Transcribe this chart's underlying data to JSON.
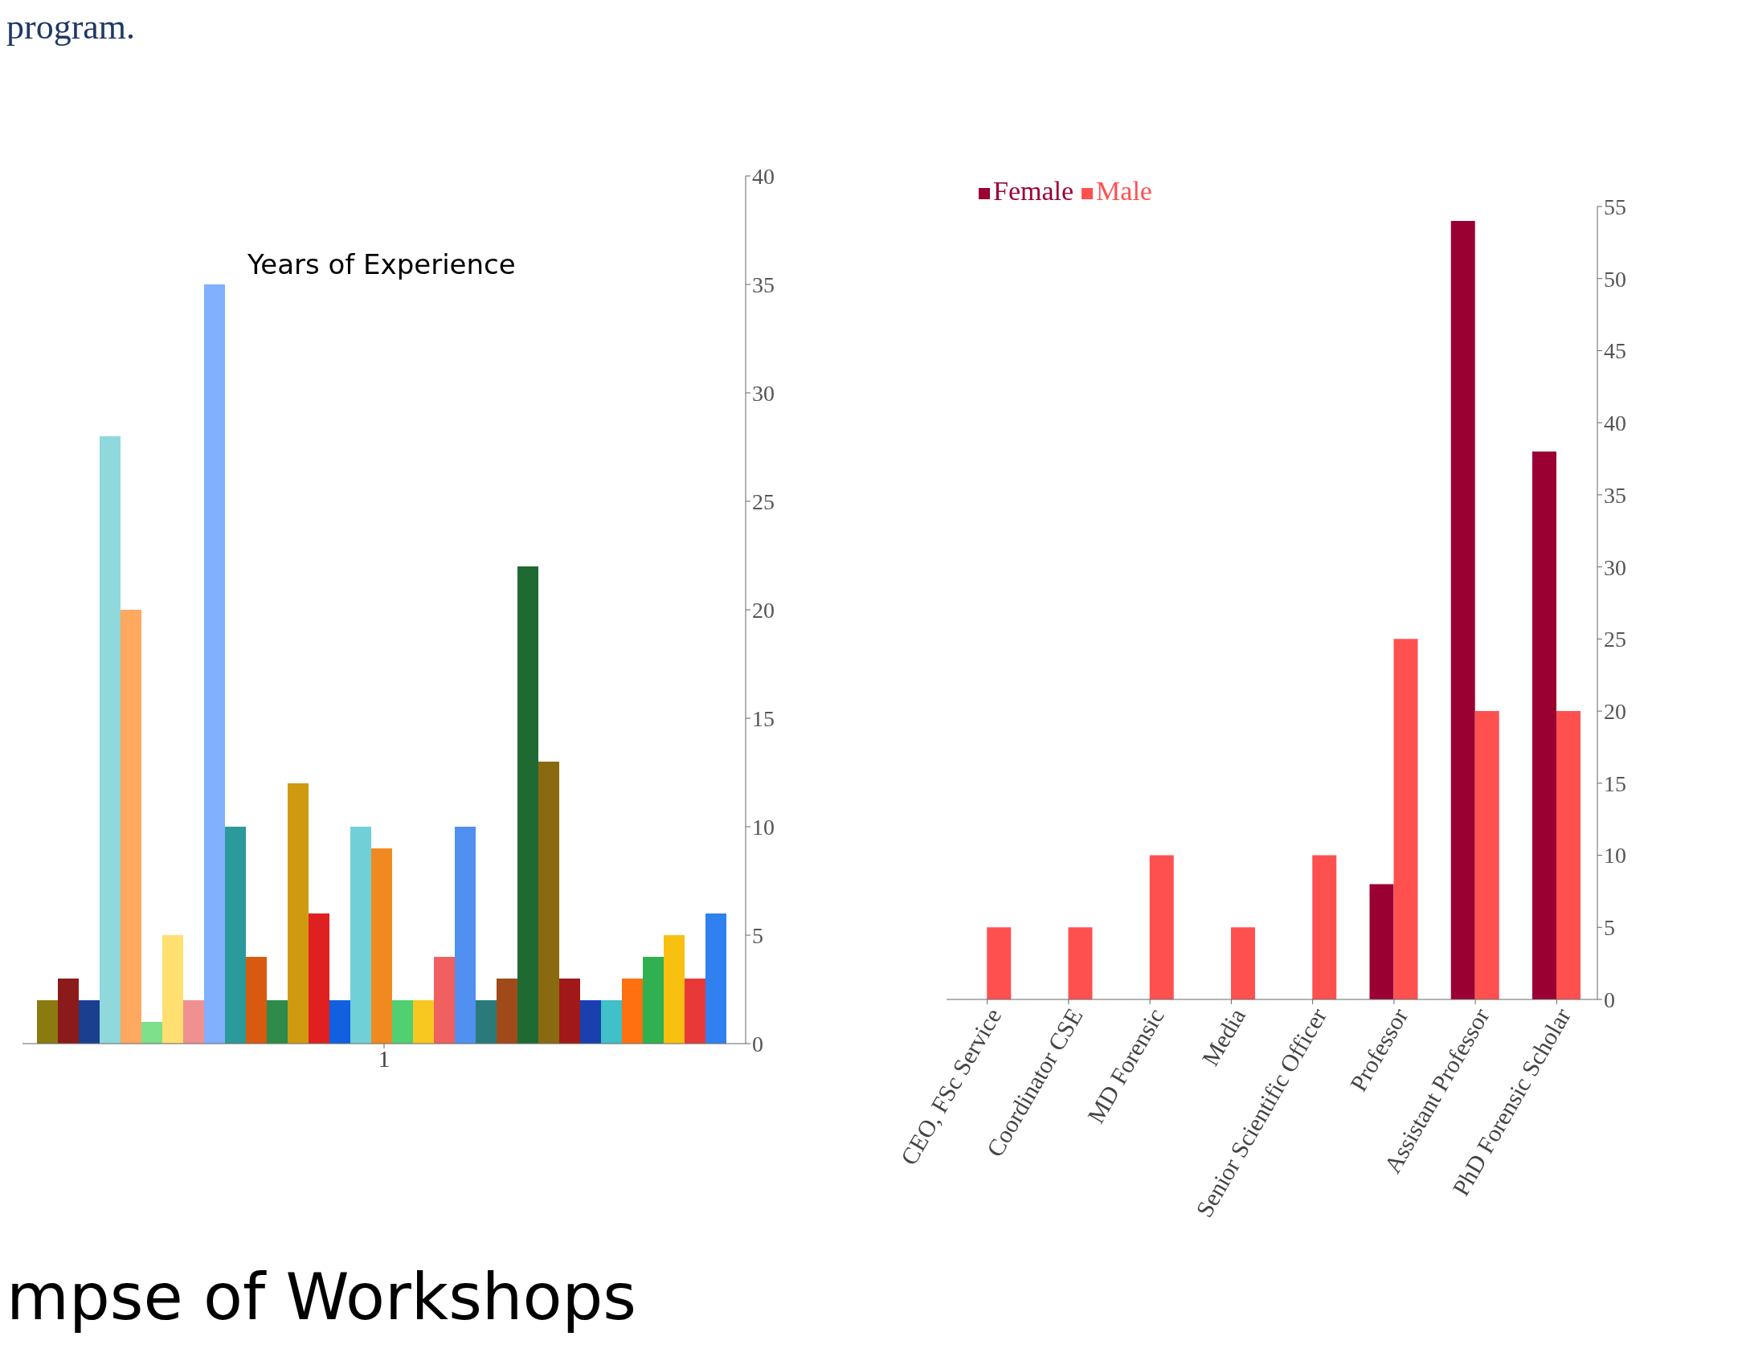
{
  "chart_data": [
    {
      "type": "bar",
      "title": "Years of Experience",
      "categories": [
        "1"
      ],
      "ylim": [
        0,
        40
      ],
      "yticks": [
        0,
        5,
        10,
        15,
        20,
        25,
        30,
        35,
        40
      ],
      "grid": false,
      "legend": false,
      "annotations": [
        "program.",
        "mpse of Workshops"
      ],
      "series": [
        {
          "color": "#8a7a10",
          "values": [
            2
          ]
        },
        {
          "color": "#8b1a1a",
          "values": [
            3
          ]
        },
        {
          "color": "#1a3f8f",
          "values": [
            2
          ]
        },
        {
          "color": "#8fd8dc",
          "values": [
            28
          ]
        },
        {
          "color": "#ffa860",
          "values": [
            20
          ]
        },
        {
          "color": "#7ee08a",
          "values": [
            1
          ]
        },
        {
          "color": "#ffe070",
          "values": [
            5
          ]
        },
        {
          "color": "#f09090",
          "values": [
            2
          ]
        },
        {
          "color": "#80b0ff",
          "values": [
            35
          ]
        },
        {
          "color": "#2a9a9a",
          "values": [
            10
          ]
        },
        {
          "color": "#d85a10",
          "values": [
            4
          ]
        },
        {
          "color": "#2e8b4a",
          "values": [
            2
          ]
        },
        {
          "color": "#d09a10",
          "values": [
            12
          ]
        },
        {
          "color": "#e02020",
          "values": [
            6
          ]
        },
        {
          "color": "#1060e0",
          "values": [
            2
          ]
        },
        {
          "color": "#70d0d8",
          "values": [
            10
          ]
        },
        {
          "color": "#f08a20",
          "values": [
            9
          ]
        },
        {
          "color": "#50d070",
          "values": [
            2
          ]
        },
        {
          "color": "#f8c820",
          "values": [
            2
          ]
        },
        {
          "color": "#f06060",
          "values": [
            4
          ]
        },
        {
          "color": "#5090f0",
          "values": [
            10
          ]
        },
        {
          "color": "#2a7a7a",
          "values": [
            2
          ]
        },
        {
          "color": "#a04a1a",
          "values": [
            3
          ]
        },
        {
          "color": "#1e6a32",
          "values": [
            22
          ]
        },
        {
          "color": "#8a6a10",
          "values": [
            13
          ]
        },
        {
          "color": "#a01818",
          "values": [
            3
          ]
        },
        {
          "color": "#1a40b0",
          "values": [
            2
          ]
        },
        {
          "color": "#40c0c8",
          "values": [
            2
          ]
        },
        {
          "color": "#ff7010",
          "values": [
            3
          ]
        },
        {
          "color": "#30b050",
          "values": [
            4
          ]
        },
        {
          "color": "#f8c010",
          "values": [
            5
          ]
        },
        {
          "color": "#e83838",
          "values": [
            3
          ]
        },
        {
          "color": "#3080f0",
          "values": [
            6
          ]
        }
      ]
    },
    {
      "type": "bar",
      "categories": [
        "CEO, FSc Service",
        "Coordinator CSE",
        "MD Forensic",
        "Media",
        "Senior Scientific Officer",
        "Professor",
        "Assistant Professor",
        "PhD Forensic Scholar"
      ],
      "ylim": [
        0,
        55
      ],
      "yticks": [
        0,
        5,
        10,
        15,
        20,
        25,
        30,
        35,
        40,
        45,
        50,
        55
      ],
      "grid": false,
      "legend": "top left",
      "series": [
        {
          "name": "Female",
          "color": "#9b0033",
          "values": [
            null,
            null,
            null,
            null,
            null,
            8,
            54,
            38
          ]
        },
        {
          "name": "Male",
          "color": "#ff5050",
          "values": [
            5,
            5,
            10,
            5,
            10,
            25,
            20,
            20
          ]
        }
      ]
    }
  ]
}
